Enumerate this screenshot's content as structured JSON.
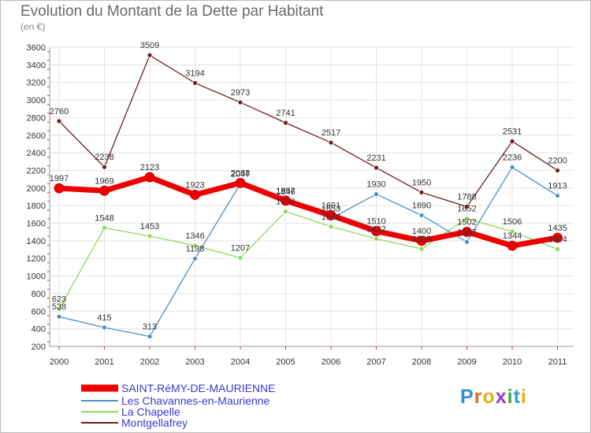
{
  "title": "Evolution du Montant de la Dette par Habitant",
  "subtitle": "(en €)",
  "logo": {
    "text": "Proxiti",
    "letter_colors": [
      "#2e8fd6",
      "#e06a1a",
      "#e0b21a",
      "#9a3ad0",
      "#3aa83a",
      "#2ea0e0",
      "#e0b21a"
    ]
  },
  "chart_data": {
    "type": "line",
    "title": "Evolution du Montant de la Dette par Habitant",
    "ylabel": "(en €)",
    "x": [
      "2000",
      "2001",
      "2002",
      "2003",
      "2004",
      "2005",
      "2006",
      "2007",
      "2008",
      "2009",
      "2010",
      "2011"
    ],
    "ylim": [
      200,
      3600
    ],
    "yticks": [
      200,
      400,
      600,
      800,
      1000,
      1200,
      1400,
      1600,
      1800,
      2000,
      2200,
      2400,
      2600,
      2800,
      3000,
      3200,
      3400,
      3600
    ],
    "grid": true,
    "legend": "bottom-left",
    "series": [
      {
        "name": "SAINT-RéMY-DE-MAURIENNE",
        "color": "#ee0000",
        "values": [
          1997,
          1969,
          2123,
          1923,
          2058,
          1857,
          1691,
          1510,
          1400,
          1502,
          1344,
          1435
        ]
      },
      {
        "name": "Les Chavannes-en-Maurienne",
        "color": "#4a90c8",
        "values": [
          538,
          415,
          313,
          1198,
          2047,
          1846,
          1653,
          1930,
          1690,
          1387,
          2236,
          1913
        ]
      },
      {
        "name": "La Chapelle",
        "color": "#8fd85a",
        "values": [
          623,
          1548,
          1453,
          1346,
          1207,
          1733,
          1562,
          1422,
          1308,
          1652,
          1506,
          1304
        ]
      },
      {
        "name": "Montgellafrey",
        "color": "#6e1e22",
        "values": [
          2760,
          2238,
          3509,
          3194,
          2973,
          2741,
          2517,
          2231,
          1950,
          1788,
          2531,
          2200
        ]
      }
    ]
  }
}
